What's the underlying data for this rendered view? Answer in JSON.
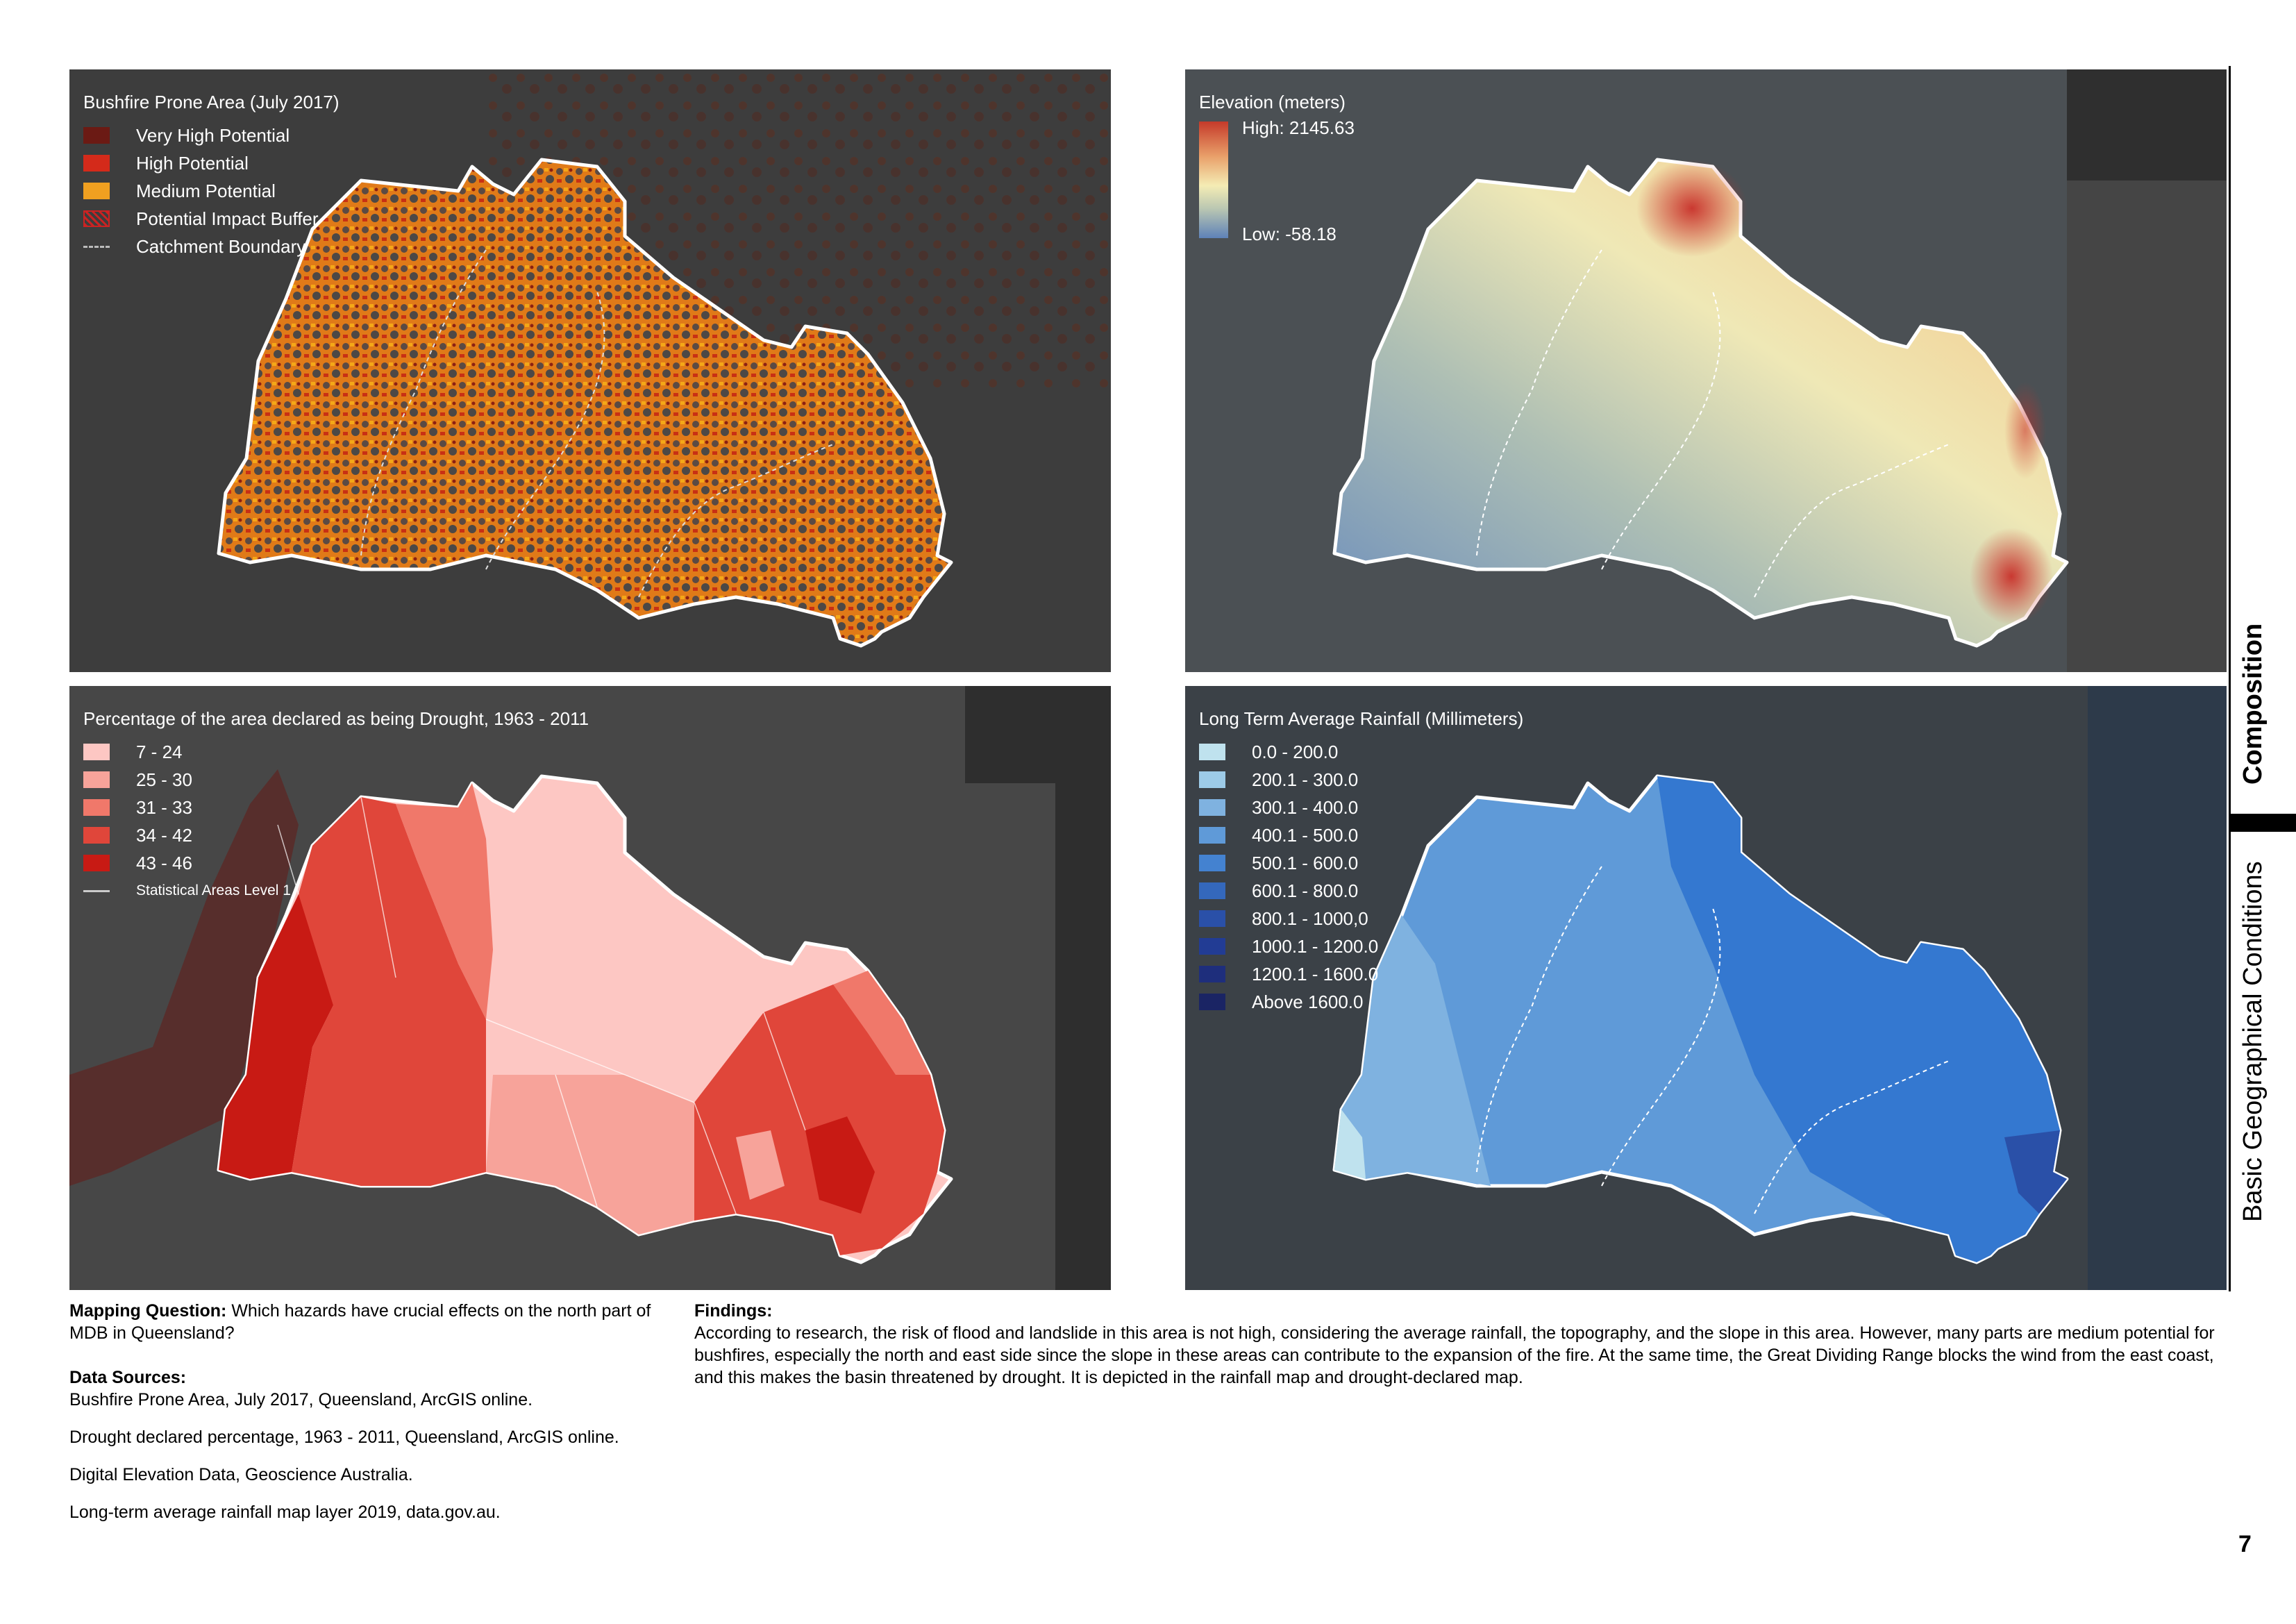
{
  "maps": {
    "bushfire": {
      "title": "Bushfire Prone Area (July 2017)",
      "legend": [
        {
          "label": "Very High Potential",
          "color": "#6b1a14"
        },
        {
          "label": "High Potential",
          "color": "#d42a1a"
        },
        {
          "label": "Medium Potential",
          "color": "#f0a020"
        },
        {
          "label": "Potential Impact Buffer",
          "color": "#c22222"
        },
        {
          "label": "Catchment Boundary",
          "color": "#bbbbbb"
        }
      ]
    },
    "elevation": {
      "title": "Elevation (meters)",
      "high": "High: 2145.63",
      "low": "Low: -58.18"
    },
    "drought": {
      "title": "Percentage of the area declared as being Drought, 1963 - 2011",
      "legend": [
        {
          "label": "7 - 24",
          "color": "#fdc7c3"
        },
        {
          "label": "25 - 30",
          "color": "#f7a39a"
        },
        {
          "label": "31 - 33",
          "color": "#f0786a"
        },
        {
          "label": "34 - 42",
          "color": "#e0463a"
        },
        {
          "label": "43 - 46",
          "color": "#c81a14"
        },
        {
          "label": "Statistical Areas Level 1",
          "color": "#cccccc"
        }
      ]
    },
    "rainfall": {
      "title": "Long Term Average Rainfall (Millimeters)",
      "legend": [
        {
          "label": "0.0 - 200.0",
          "color": "#bfe2ee"
        },
        {
          "label": "200.1 - 300.0",
          "color": "#9dcbe8"
        },
        {
          "label": "300.1 - 400.0",
          "color": "#7fb2e0"
        },
        {
          "label": "400.1 - 500.0",
          "color": "#5f9ad8"
        },
        {
          "label": "500.1 - 600.0",
          "color": "#4482d0"
        },
        {
          "label": "600.1 - 800.0",
          "color": "#3468bc"
        },
        {
          "label": "800.1 - 1000,0",
          "color": "#2a50a8"
        },
        {
          "label": "1000.1 - 1200.0",
          "color": "#223c94"
        },
        {
          "label": "1200.1 - 1600.0",
          "color": "#1e2e7c"
        },
        {
          "label": "Above 1600.0",
          "color": "#1a2464"
        }
      ]
    }
  },
  "text": {
    "mapping_question_label": "Mapping Question:",
    "mapping_question": "Which hazards have crucial effects on the north part of MDB in Queensland?",
    "data_sources_label": "Data Sources:",
    "sources": [
      "Bushfire Prone Area, July 2017, Queensland, ArcGIS online.",
      "Drought declared percentage, 1963 - 2011, Queensland, ArcGIS online.",
      "Digital Elevation Data, Geoscience Australia.",
      "Long-term average rainfall map layer 2019, data.gov.au."
    ],
    "findings_label": "Findings:",
    "findings": "According to research, the risk of flood and landslide in this area is not high, considering the average rainfall, the topography, and the slope in this area. However, many parts are medium potential for bushfires, especially the north and east side since the slope in these areas can contribute to the expansion of the fire. At the same time, the Great Dividing Range blocks the wind from the east coast, and this makes the basin threatened by drought. It is depicted in the rainfall map and drought-declared map."
  },
  "sidebar": {
    "section": "Composition",
    "subsection": "Basic Geographical Conditions"
  },
  "page_number": "7"
}
